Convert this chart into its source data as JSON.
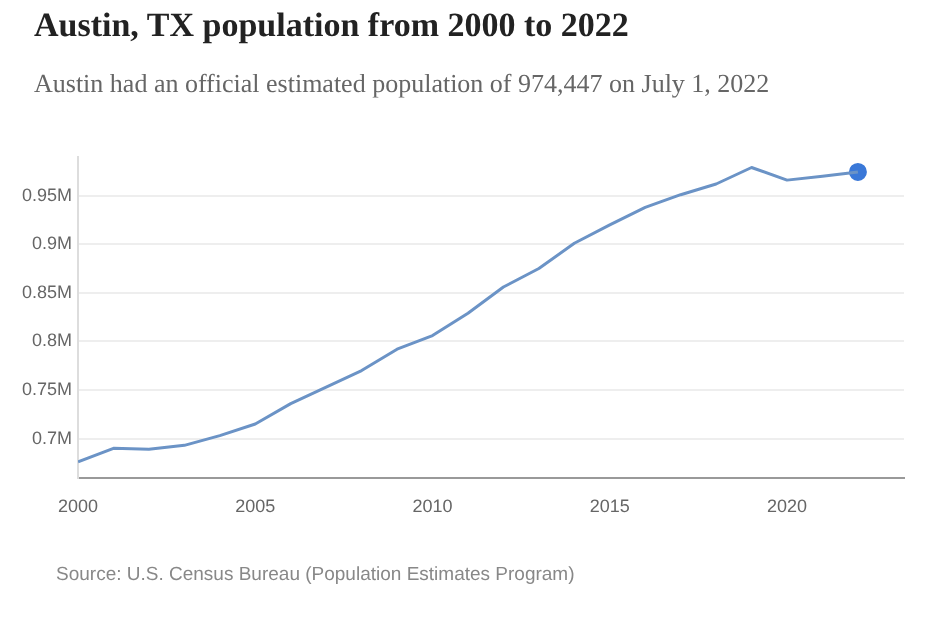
{
  "chart_data": {
    "type": "line",
    "title": "Austin, TX population from 2000 to 2022",
    "subtitle": "Austin had an official estimated population of 974,447 on July 1, 2022",
    "x": [
      2000,
      2001,
      2002,
      2003,
      2004,
      2005,
      2006,
      2007,
      2008,
      2009,
      2010,
      2011,
      2012,
      2013,
      2014,
      2015,
      2016,
      2017,
      2018,
      2019,
      2020,
      2021,
      2022
    ],
    "series": [
      {
        "color": "#6b93c6",
        "values": [
          676000,
          690000,
          689000,
          693000,
          703000,
          715000,
          736000,
          753000,
          770000,
          792000,
          806000,
          829000,
          856000,
          875000,
          901000,
          920000,
          938000,
          951000,
          962000,
          979000,
          966000,
          970000,
          974447
        ]
      },
      {
        "type": "scatter",
        "x": [
          2022
        ],
        "color": "#3a78d8",
        "marker": "circle",
        "values": [
          974447
        ]
      }
    ],
    "xlim": [
      2000,
      2023.3
    ],
    "xticks": [
      2000,
      2005,
      2010,
      2015,
      2020
    ],
    "ylim": [
      659000,
      990000
    ],
    "yticks": [
      {
        "value": 700000,
        "label": "0.7M"
      },
      {
        "value": 750000,
        "label": "0.75M"
      },
      {
        "value": 800000,
        "label": "0.8M"
      },
      {
        "value": 850000,
        "label": "0.85M"
      },
      {
        "value": 900000,
        "label": "0.9M"
      },
      {
        "value": 950000,
        "label": "0.95M"
      }
    ],
    "grid": "y",
    "legend": false,
    "marker": "none",
    "annotations": [
      "Source: U.S. Census Bureau (Population Estimates Program)"
    ]
  }
}
